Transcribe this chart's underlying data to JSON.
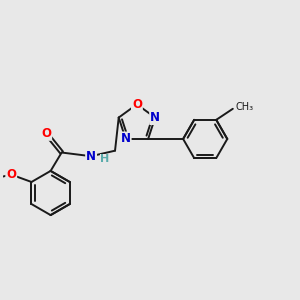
{
  "background_color": "#e8e8e8",
  "bond_color": "#1a1a1a",
  "atom_colors": {
    "O": "#ff0000",
    "N": "#0000cc",
    "H": "#5aabab",
    "C": "#1a1a1a"
  },
  "figsize": [
    3.0,
    3.0
  ],
  "dpi": 100
}
